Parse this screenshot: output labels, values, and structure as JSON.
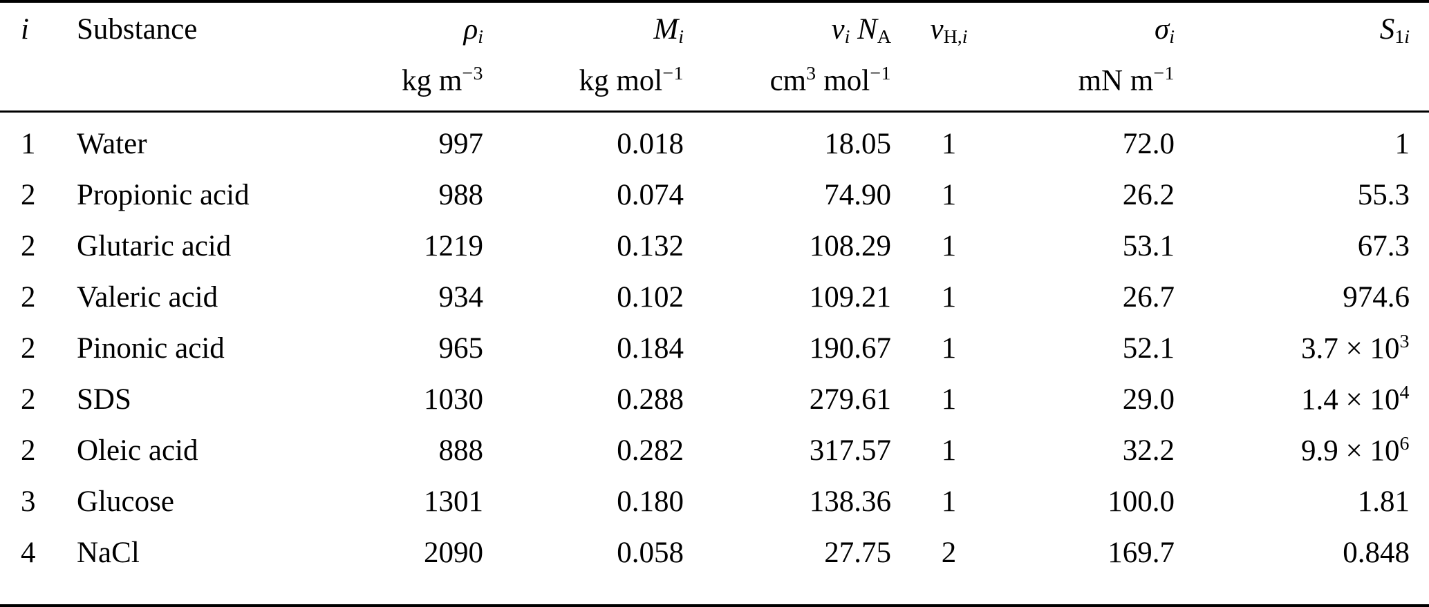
{
  "page": {
    "background_color": "#ffffff",
    "text_color": "#000000",
    "rule_color": "#000000"
  },
  "table": {
    "columns": [
      {
        "id": "i",
        "align": "left",
        "symbol": [
          {
            "text": "i",
            "italic": true
          }
        ],
        "unit": []
      },
      {
        "id": "substance",
        "align": "left",
        "symbol": [
          {
            "text": "Substance"
          }
        ],
        "unit": []
      },
      {
        "id": "rho-i",
        "align": "right",
        "symbol": [
          {
            "text": "ρ",
            "italic": true
          },
          {
            "text": "i",
            "style": "sub",
            "italic": true
          }
        ],
        "unit": [
          {
            "text": "kg m"
          },
          {
            "text": "−3",
            "style": "sup"
          }
        ]
      },
      {
        "id": "m-i",
        "align": "right",
        "symbol": [
          {
            "text": "M",
            "italic": true
          },
          {
            "text": "i",
            "style": "sub",
            "italic": true
          }
        ],
        "unit": [
          {
            "text": "kg mol"
          },
          {
            "text": "−1",
            "style": "sup"
          }
        ]
      },
      {
        "id": "vi-na",
        "align": "right",
        "symbol": [
          {
            "text": "v",
            "italic": true
          },
          {
            "text": "i",
            "style": "sub",
            "italic": true
          },
          {
            "text": " "
          },
          {
            "text": "N",
            "italic": true
          },
          {
            "text": "A",
            "style": "sub"
          }
        ],
        "unit": [
          {
            "text": "cm"
          },
          {
            "text": "3",
            "style": "sup"
          },
          {
            "text": " mol"
          },
          {
            "text": "−1",
            "style": "sup"
          }
        ]
      },
      {
        "id": "vh-i",
        "align": "center",
        "symbol": [
          {
            "text": "v",
            "italic": true
          },
          {
            "text": "H,",
            "style": "sub"
          },
          {
            "text": "i",
            "style": "sub",
            "italic": true
          }
        ],
        "unit": []
      },
      {
        "id": "sigma-i",
        "align": "right",
        "symbol": [
          {
            "text": "σ",
            "italic": true
          },
          {
            "text": "i",
            "style": "sub",
            "italic": true
          }
        ],
        "unit": [
          {
            "text": "mN m"
          },
          {
            "text": "−1",
            "style": "sup"
          }
        ]
      },
      {
        "id": "s-1i",
        "align": "right",
        "symbol": [
          {
            "text": "S",
            "italic": true
          },
          {
            "text": "1",
            "style": "sub"
          },
          {
            "text": "i",
            "style": "sub",
            "italic": true
          }
        ],
        "unit": []
      }
    ],
    "rows": [
      [
        "1",
        "Water",
        "997",
        "0.018",
        "18.05",
        "1",
        "72.0",
        "1"
      ],
      [
        "2",
        "Propionic acid",
        "988",
        "0.074",
        "74.90",
        "1",
        "26.2",
        "55.3"
      ],
      [
        "2",
        "Glutaric acid",
        "1219",
        "0.132",
        "108.29",
        "1",
        "53.1",
        "67.3"
      ],
      [
        "2",
        "Valeric acid",
        "934",
        "0.102",
        "109.21",
        "1",
        "26.7",
        "974.6"
      ],
      [
        "2",
        "Pinonic acid",
        "965",
        "0.184",
        "190.67",
        "1",
        "52.1",
        [
          {
            "text": "3.7 × 10"
          },
          {
            "text": "3",
            "style": "sup"
          }
        ]
      ],
      [
        "2",
        "SDS",
        "1030",
        "0.288",
        "279.61",
        "1",
        "29.0",
        [
          {
            "text": "1.4 × 10"
          },
          {
            "text": "4",
            "style": "sup"
          }
        ]
      ],
      [
        "2",
        "Oleic acid",
        "888",
        "0.282",
        "317.57",
        "1",
        "32.2",
        [
          {
            "text": "9.9 × 10"
          },
          {
            "text": "6",
            "style": "sup"
          }
        ]
      ],
      [
        "3",
        "Glucose",
        "1301",
        "0.180",
        "138.36",
        "1",
        "100.0",
        "1.81"
      ],
      [
        "4",
        "NaCl",
        "2090",
        "0.058",
        "27.75",
        "2",
        "169.7",
        "0.848"
      ]
    ]
  }
}
